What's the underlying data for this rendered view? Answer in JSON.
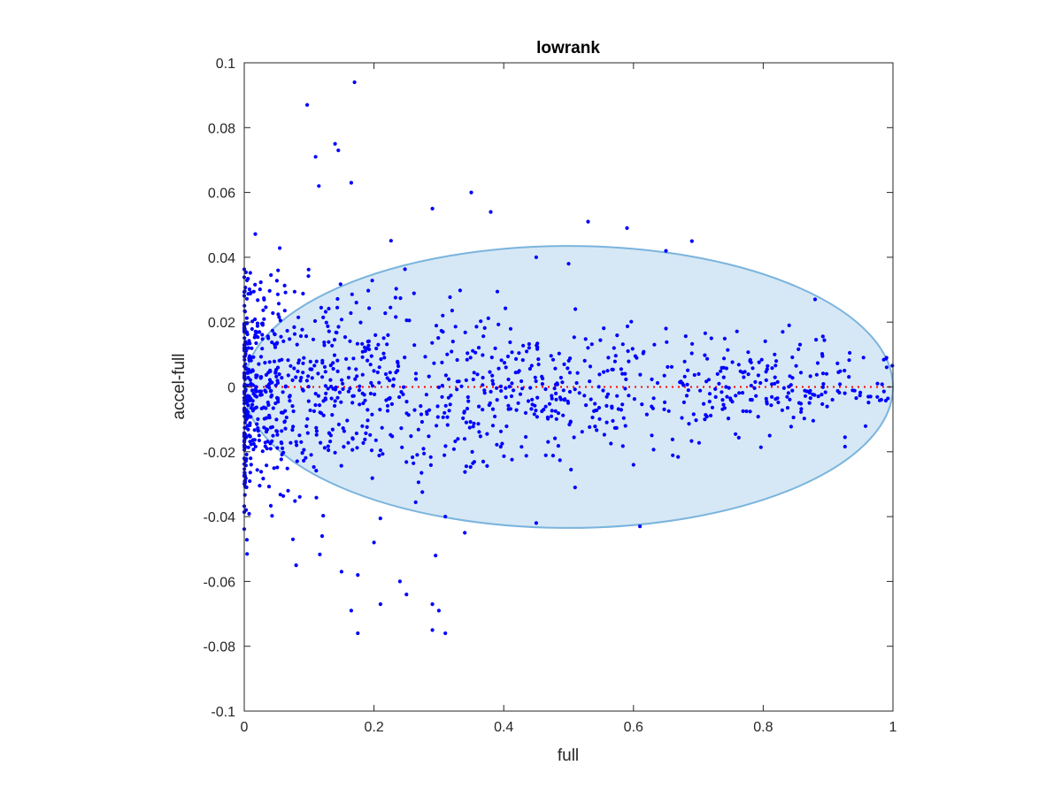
{
  "chart_data": {
    "type": "scatter",
    "title": "lowrank",
    "xlabel": "full",
    "ylabel": "accel-full",
    "xlim": [
      0,
      1
    ],
    "ylim": [
      -0.1,
      0.1
    ],
    "x_ticks": [
      0,
      0.2,
      0.4,
      0.6,
      0.8,
      1
    ],
    "x_tick_labels": [
      "0",
      "0.2",
      "0.4",
      "0.6",
      "0.8",
      "1"
    ],
    "y_ticks": [
      -0.1,
      -0.08,
      -0.06,
      -0.04,
      -0.02,
      0,
      0.02,
      0.04,
      0.06,
      0.08,
      0.1
    ],
    "y_tick_labels": [
      "-0.1",
      "-0.08",
      "-0.06",
      "-0.04",
      "-0.02",
      "0",
      "0.02",
      "0.04",
      "0.06",
      "0.08",
      "0.1"
    ],
    "grid": false,
    "legend": "none",
    "reference_line": {
      "y": 0,
      "x_range": [
        0,
        1
      ],
      "style": "dotted",
      "color": "#ff0000"
    },
    "ellipse": {
      "center": [
        0.5,
        0
      ],
      "half_width": 0.5,
      "half_height": 0.0435,
      "fill": "#d6e8f5",
      "stroke": "#7ab4dd"
    },
    "point_color": "#0000ff",
    "generated_points": {
      "count": 1200,
      "seed": 7
    },
    "series": [
      {
        "color": "#0000ff",
        "points": [
          [
            0.17,
            0.094
          ],
          [
            0.097,
            0.087
          ],
          [
            0.14,
            0.075
          ],
          [
            0.11,
            0.071
          ],
          [
            0.145,
            0.073
          ],
          [
            0.165,
            0.063
          ],
          [
            0.115,
            0.062
          ],
          [
            0.35,
            0.06
          ],
          [
            0.29,
            0.055
          ],
          [
            0.38,
            0.054
          ],
          [
            0.53,
            0.051
          ],
          [
            0.59,
            0.049
          ],
          [
            0.69,
            0.045
          ],
          [
            0.65,
            0.042
          ],
          [
            0.88,
            0.027
          ],
          [
            0.84,
            0.019
          ],
          [
            0.83,
            0.017
          ],
          [
            0.99,
            0.009
          ],
          [
            0.82,
            0.008
          ],
          [
            0.81,
            -0.015
          ],
          [
            0.75,
            -0.004
          ],
          [
            0.71,
            -0.01
          ],
          [
            0.65,
            0.018
          ],
          [
            0.6,
            -0.024
          ],
          [
            0.61,
            -0.043
          ],
          [
            0.51,
            -0.031
          ],
          [
            0.45,
            -0.042
          ],
          [
            0.31,
            -0.076
          ],
          [
            0.29,
            -0.075
          ],
          [
            0.3,
            -0.069
          ],
          [
            0.29,
            -0.067
          ],
          [
            0.295,
            -0.052
          ],
          [
            0.175,
            -0.076
          ],
          [
            0.165,
            -0.069
          ],
          [
            0.21,
            -0.067
          ],
          [
            0.25,
            -0.064
          ],
          [
            0.24,
            -0.06
          ],
          [
            0.15,
            -0.057
          ],
          [
            0.175,
            -0.058
          ],
          [
            0.08,
            -0.055
          ],
          [
            0.2,
            -0.048
          ],
          [
            0.12,
            -0.046
          ],
          [
            0.075,
            -0.047
          ],
          [
            0.34,
            -0.045
          ],
          [
            0.31,
            -0.04
          ],
          [
            0.5,
            0.038
          ],
          [
            0.45,
            0.04
          ],
          [
            0.72,
            0.015
          ],
          [
            0.77,
            0.003
          ],
          [
            0.56,
            0.005
          ]
        ]
      }
    ]
  }
}
